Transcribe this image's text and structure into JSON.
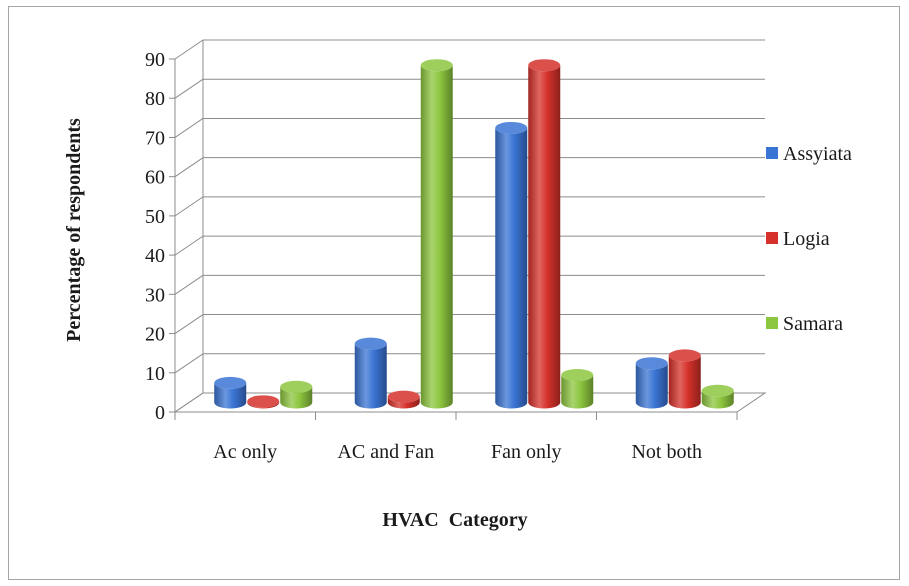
{
  "chart_data": {
    "type": "bar",
    "title": "",
    "xlabel": "HVAC  Category",
    "ylabel": "Percentage of respondents",
    "categories": [
      "Ac only",
      "AC and Fan",
      "Fan only",
      "Not both"
    ],
    "series": [
      {
        "name": "Assyiata",
        "values": [
          5,
          15,
          70,
          10
        ],
        "color": "#3a74d4"
      },
      {
        "name": "Logia",
        "values": [
          0.3,
          1.5,
          86,
          12
        ],
        "color": "#d6312b"
      },
      {
        "name": "Samara",
        "values": [
          4,
          86,
          7,
          3
        ],
        "color": "#8dc63f"
      }
    ],
    "ylim": [
      0,
      90
    ],
    "yticks": [
      "0",
      "10",
      "20",
      "30",
      "40",
      "50",
      "60",
      "70",
      "80",
      "90"
    ],
    "grid": true,
    "three_d": true,
    "legend_position": "right"
  }
}
